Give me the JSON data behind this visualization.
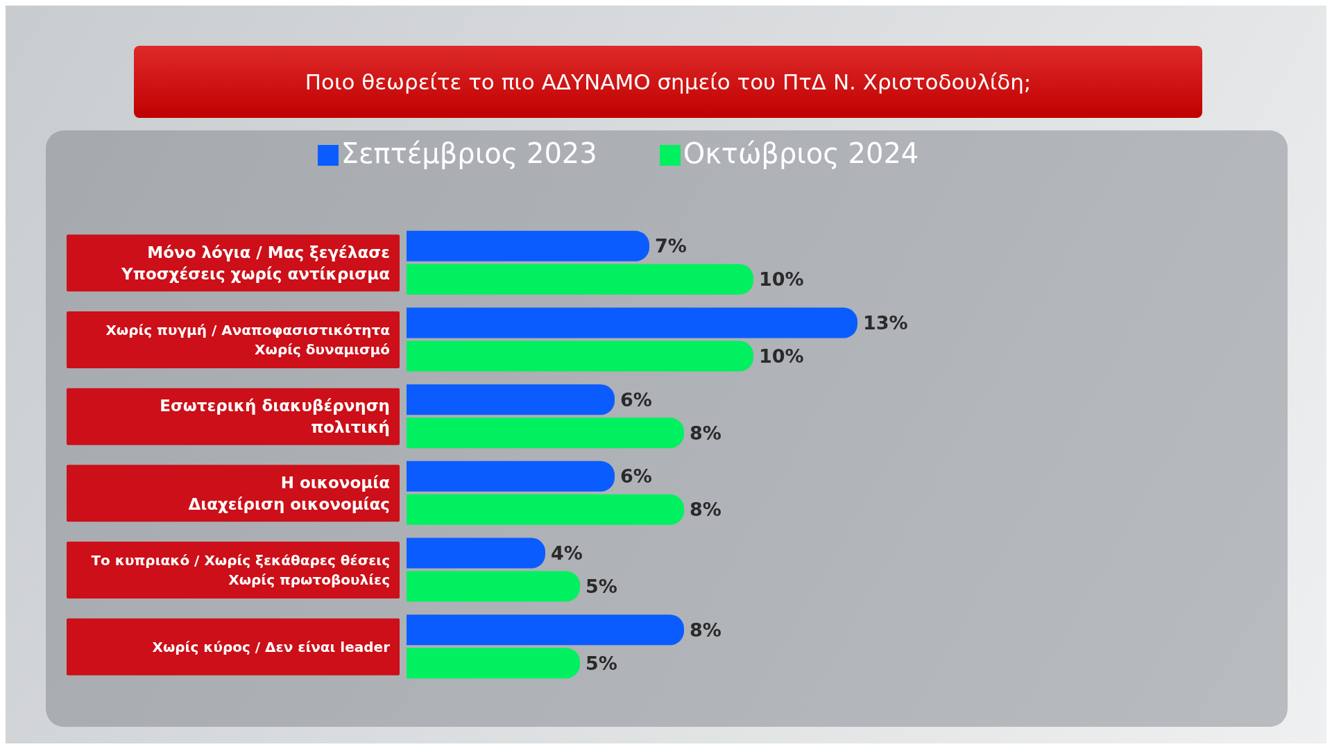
{
  "chart_data": {
    "type": "bar",
    "orientation": "horizontal",
    "title": "Ποιο θεωρείτε το πιο ΑΔΥΝΑΜΟ σημείο του ΠτΔ Ν. Χριστοδουλίδη;",
    "categories": [
      "Μόνο λόγια / Μας ξεγέλασε\nΥποσχέσεις χωρίς αντίκρισμα",
      "Χωρίς πυγμή / Αναποφασιστικότητα\nΧωρίς δυναμισμό",
      "Εσωτερική διακυβέρνηση\nπολιτική",
      "Η οικονομία\nΔιαχείριση οικονομίας",
      "Το κυπριακό / Χωρίς ξεκάθαρες θέσεις\nΧωρίς πρωτοβουλίες",
      "Χωρίς κύρος / Δεν είναι leader"
    ],
    "series": [
      {
        "name": "Σεπτέμβριος 2023",
        "color": "#0b5cff",
        "values": [
          7,
          13,
          6,
          6,
          4,
          8
        ],
        "value_labels": [
          "7%",
          "13%",
          "6%",
          "6%",
          "4%",
          "8%"
        ]
      },
      {
        "name": "Οκτώβριος 2024",
        "color": "#00f060",
        "values": [
          10,
          10,
          8,
          8,
          5,
          5
        ],
        "value_labels": [
          "10%",
          "10%",
          "8%",
          "8%",
          "5%",
          "5%"
        ]
      }
    ],
    "legend": "top",
    "grid": false
  }
}
